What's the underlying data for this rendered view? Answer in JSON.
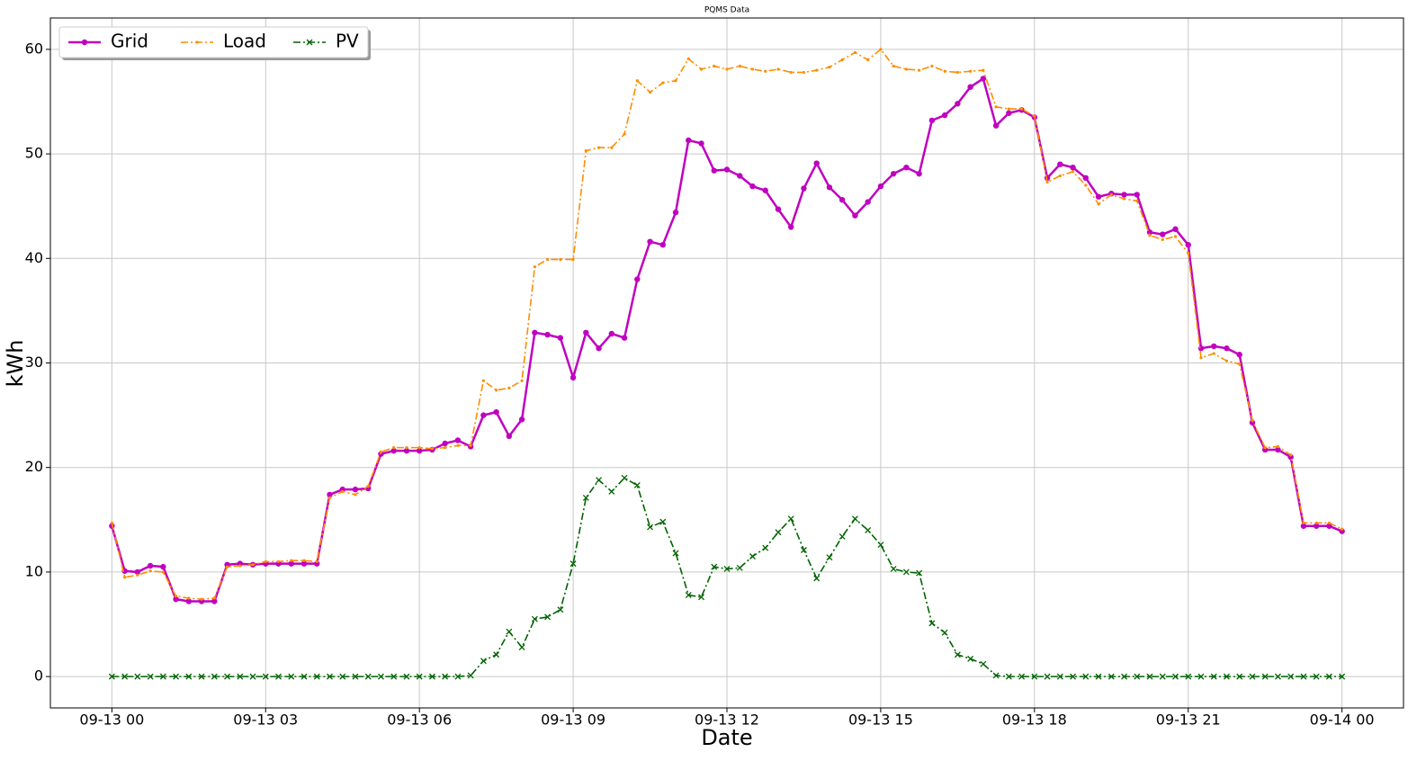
{
  "chart_data": {
    "type": "line",
    "title": "PQMS Data",
    "x_label": "Date",
    "y_label": "kWh",
    "x": [
      0,
      0.25,
      0.5,
      0.75,
      1,
      1.25,
      1.5,
      1.75,
      2,
      2.25,
      2.5,
      2.75,
      3,
      3.25,
      3.5,
      3.75,
      4,
      4.25,
      4.5,
      4.75,
      5,
      5.25,
      5.5,
      5.75,
      6,
      6.25,
      6.5,
      6.75,
      7,
      7.25,
      7.5,
      7.75,
      8,
      8.25,
      8.5,
      8.75,
      9,
      9.25,
      9.5,
      9.75,
      10,
      10.25,
      10.5,
      10.75,
      11,
      11.25,
      11.5,
      11.75,
      12,
      12.25,
      12.5,
      12.75,
      13,
      13.25,
      13.5,
      13.75,
      14,
      14.25,
      14.5,
      14.75,
      15,
      15.25,
      15.5,
      15.75,
      16,
      16.25,
      16.5,
      16.75,
      17,
      17.25,
      17.5,
      17.75,
      18,
      18.25,
      18.5,
      18.75,
      19,
      19.25,
      19.5,
      19.75,
      20,
      20.25,
      20.5,
      20.75,
      21,
      21.25,
      21.5,
      21.75,
      22,
      22.25,
      22.5,
      22.75,
      23,
      23.25,
      23.5,
      23.75,
      24
    ],
    "series": [
      {
        "name": "Grid",
        "color": "#c000c0",
        "line_style": "solid",
        "marker": "circle",
        "values": [
          14.4,
          10.1,
          10.0,
          10.6,
          10.5,
          7.4,
          7.2,
          7.2,
          7.2,
          10.7,
          10.8,
          10.7,
          10.8,
          10.8,
          10.8,
          10.8,
          10.8,
          17.4,
          17.9,
          17.9,
          18.0,
          21.3,
          21.6,
          21.6,
          21.6,
          21.7,
          22.3,
          22.6,
          22.0,
          25.0,
          25.3,
          23.0,
          24.6,
          32.9,
          32.7,
          32.4,
          28.6,
          32.9,
          31.4,
          32.8,
          32.4,
          38.0,
          41.6,
          41.3,
          44.4,
          51.3,
          51.0,
          48.4,
          48.5,
          47.9,
          46.9,
          46.5,
          44.7,
          43.0,
          46.7,
          49.1,
          46.8,
          45.6,
          44.1,
          45.4,
          46.9,
          48.1,
          48.7,
          48.1,
          53.2,
          53.7,
          54.8,
          56.4,
          57.2,
          52.7,
          53.9,
          54.2,
          53.5,
          47.7,
          49.0,
          48.7,
          47.7,
          45.9,
          46.2,
          46.1,
          46.1,
          42.5,
          42.3,
          42.8,
          41.3,
          31.4,
          31.6,
          31.4,
          30.8,
          24.3,
          21.7,
          21.7,
          21.0,
          14.4,
          14.4,
          14.4,
          13.9
        ]
      },
      {
        "name": "Load",
        "color": "#ff8c00",
        "line_style": "dashdot",
        "marker": "point",
        "values": [
          14.7,
          9.5,
          9.7,
          10.1,
          10.0,
          7.7,
          7.5,
          7.4,
          7.5,
          10.5,
          10.6,
          10.7,
          11.0,
          11.0,
          11.1,
          11.1,
          11.0,
          17.1,
          17.7,
          17.4,
          18.2,
          21.5,
          21.9,
          21.9,
          21.9,
          21.8,
          21.9,
          22.1,
          22.1,
          28.3,
          27.4,
          27.6,
          28.3,
          39.2,
          39.9,
          39.9,
          39.9,
          50.3,
          50.6,
          50.6,
          51.9,
          57.0,
          55.9,
          56.8,
          57.0,
          59.1,
          58.1,
          58.4,
          58.1,
          58.4,
          58.1,
          57.9,
          58.1,
          57.8,
          57.8,
          58.0,
          58.3,
          59.0,
          59.7,
          59.0,
          60.0,
          58.4,
          58.1,
          58.0,
          58.4,
          57.9,
          57.8,
          57.9,
          58.0,
          54.5,
          54.3,
          54.3,
          53.6,
          47.3,
          47.9,
          48.3,
          47.0,
          45.2,
          46.1,
          45.7,
          45.5,
          42.2,
          41.8,
          42.1,
          40.5,
          30.5,
          30.9,
          30.2,
          29.9,
          24.5,
          21.9,
          22.0,
          21.2,
          14.7,
          14.7,
          14.7,
          14.1
        ]
      },
      {
        "name": "PV",
        "color": "#006400",
        "line_style": "dashdot",
        "marker": "x",
        "values": [
          0,
          0,
          0,
          0,
          0,
          0,
          0,
          0,
          0,
          0,
          0,
          0,
          0,
          0,
          0,
          0,
          0,
          0,
          0,
          0,
          0,
          0,
          0,
          0,
          0,
          0,
          0,
          0,
          0.1,
          1.5,
          2.1,
          4.3,
          2.8,
          5.5,
          5.7,
          6.4,
          10.8,
          17.1,
          18.8,
          17.7,
          19.0,
          18.3,
          14.3,
          14.8,
          11.8,
          7.8,
          7.6,
          10.5,
          10.3,
          10.4,
          11.5,
          12.3,
          13.8,
          15.1,
          12.1,
          9.4,
          11.4,
          13.4,
          15.1,
          14.0,
          12.6,
          10.3,
          10.0,
          9.9,
          5.1,
          4.2,
          2.1,
          1.7,
          1.2,
          0.1,
          0,
          0,
          0,
          0,
          0,
          0,
          0,
          0,
          0,
          0,
          0,
          0,
          0,
          0,
          0,
          0,
          0,
          0,
          0,
          0,
          0,
          0,
          0,
          0,
          0,
          0,
          0
        ]
      }
    ],
    "xlim": [
      -1.2,
      25.2
    ],
    "ylim": [
      -3,
      63
    ],
    "xticks": [
      {
        "value": 0,
        "label": "09-13 00"
      },
      {
        "value": 3,
        "label": "09-13 03"
      },
      {
        "value": 6,
        "label": "09-13 06"
      },
      {
        "value": 9,
        "label": "09-13 09"
      },
      {
        "value": 12,
        "label": "09-13 12"
      },
      {
        "value": 15,
        "label": "09-13 15"
      },
      {
        "value": 18,
        "label": "09-13 18"
      },
      {
        "value": 21,
        "label": "09-13 21"
      },
      {
        "value": 24,
        "label": "09-14 00"
      }
    ],
    "yticks": [
      0,
      10,
      20,
      30,
      40,
      50,
      60
    ],
    "grid": true,
    "legend": "upper left"
  }
}
